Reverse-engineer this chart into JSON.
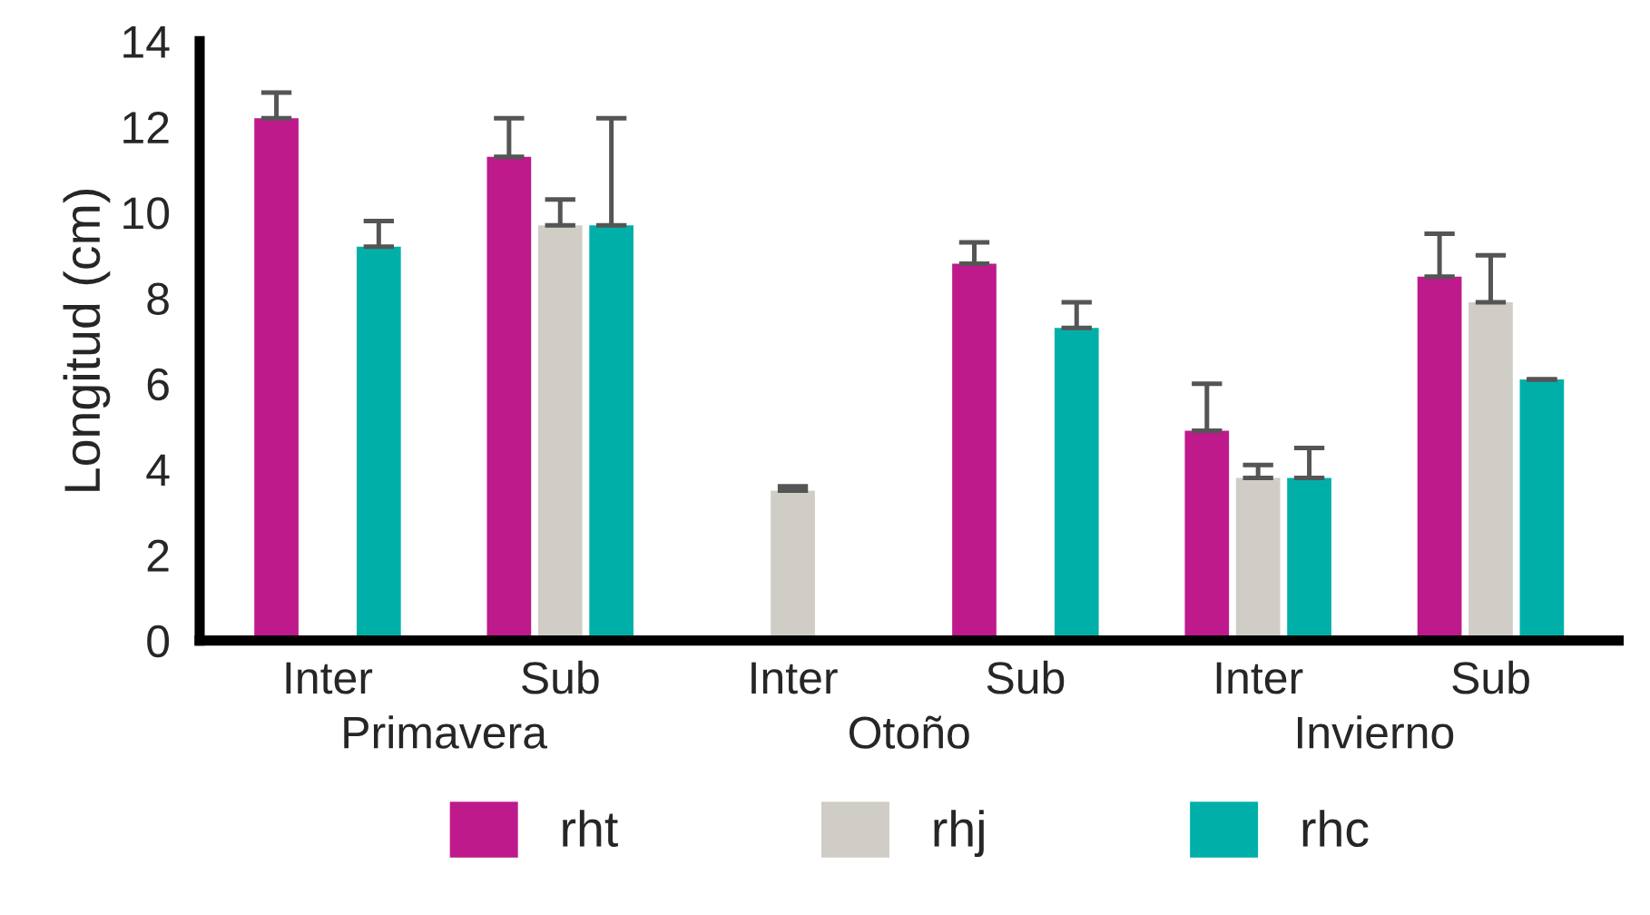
{
  "chart_data": {
    "type": "bar",
    "ylabel": "Longitud (cm)",
    "categories": [
      "Inter",
      "Sub",
      "Inter",
      "Sub",
      "Inter",
      "Sub"
    ],
    "annotations": [
      "Primavera",
      "Otoño",
      "Invierno"
    ],
    "series": [
      {
        "name": "rht",
        "color": "#be1a8c",
        "values": [
          12.2,
          11.3,
          null,
          8.8,
          4.9,
          8.5
        ],
        "errors": [
          [
            12.2,
            12.8
          ],
          [
            11.3,
            12.2
          ],
          null,
          [
            8.8,
            9.3
          ],
          [
            4.9,
            6.0
          ],
          [
            8.5,
            9.5
          ]
        ]
      },
      {
        "name": "rhj",
        "color": "#cfcdc5",
        "values": [
          null,
          9.7,
          3.5,
          null,
          3.8,
          7.9
        ],
        "errors": [
          null,
          [
            9.7,
            10.3
          ],
          [
            3.5,
            3.6
          ],
          null,
          [
            3.8,
            4.1
          ],
          [
            7.9,
            9.0
          ]
        ]
      },
      {
        "name": "rhc",
        "color": "#00b0a8",
        "values": [
          9.2,
          9.7,
          null,
          7.3,
          3.8,
          6.1
        ],
        "errors": [
          [
            9.2,
            9.8
          ],
          [
            9.7,
            12.2
          ],
          null,
          [
            7.3,
            7.9
          ],
          [
            3.8,
            4.5
          ],
          [
            6.1,
            6.1
          ]
        ]
      }
    ],
    "ylim": [
      0,
      14
    ],
    "yticks": [
      0,
      2,
      4,
      6,
      8,
      10,
      12,
      14
    ],
    "grid": false,
    "legend": "bottom"
  }
}
